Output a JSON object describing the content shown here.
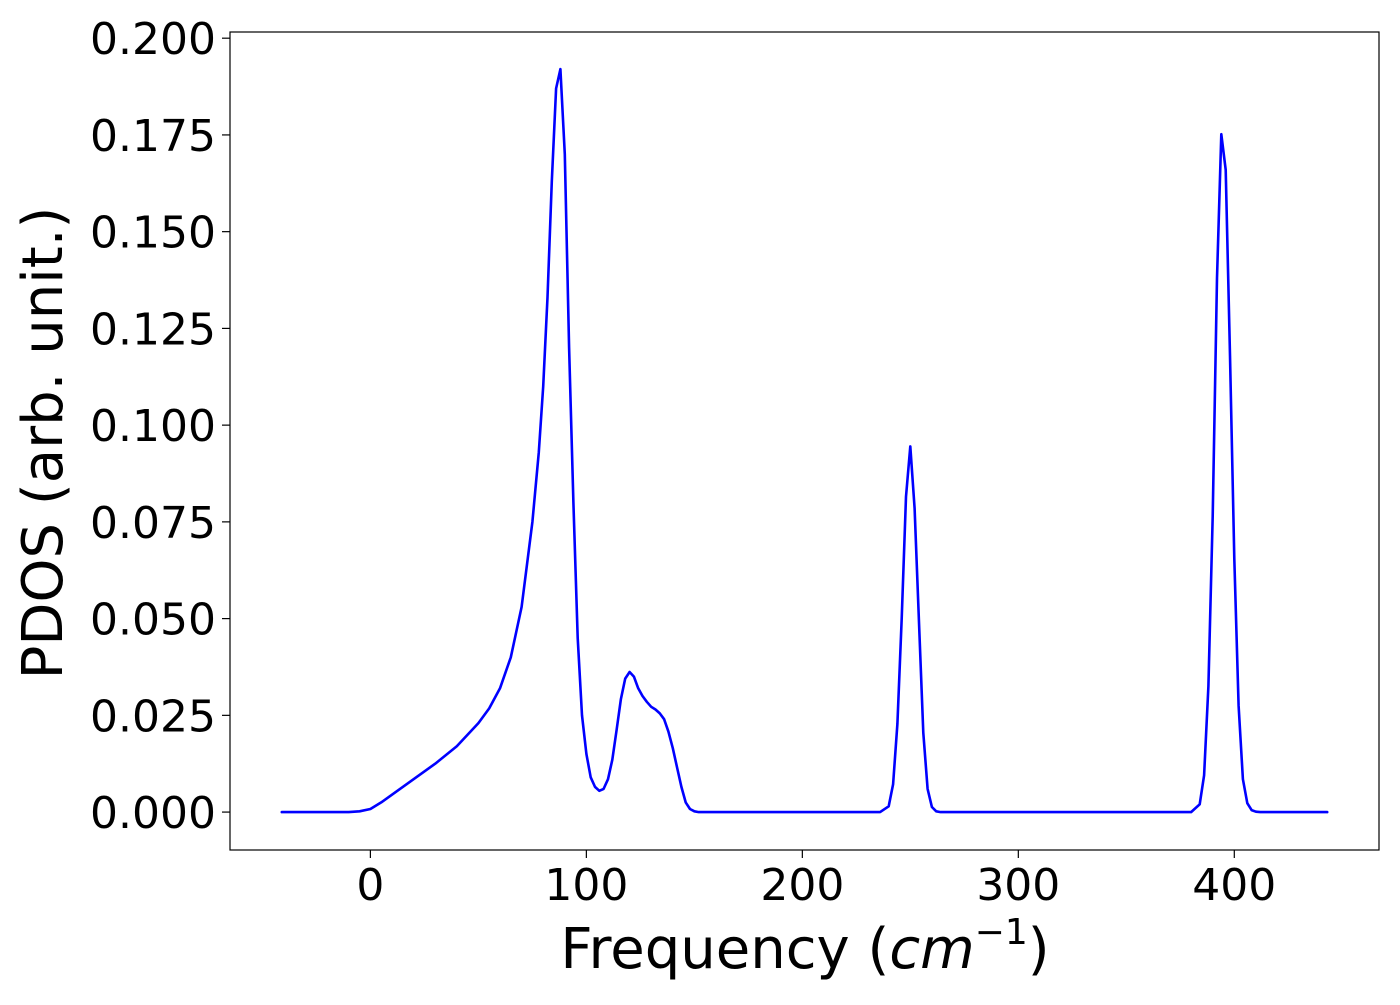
{
  "chart_data": {
    "type": "line",
    "title": "",
    "xlabel": "Frequency (",
    "xlabel_unit": "cm",
    "xlabel_exp": "−1",
    "xlabel_close": ")",
    "ylabel": "PDOS (arb. unit.)",
    "xlim": [
      -65,
      467
    ],
    "ylim": [
      -0.0098,
      0.2016
    ],
    "xticks": [
      0,
      100,
      200,
      300,
      400
    ],
    "yticks": [
      0.0,
      0.025,
      0.05,
      0.075,
      0.1,
      0.125,
      0.15,
      0.175,
      0.2
    ],
    "xtick_labels": [
      "0",
      "100",
      "200",
      "300",
      "400"
    ],
    "ytick_labels": [
      "0.000",
      "0.025",
      "0.050",
      "0.075",
      "0.100",
      "0.125",
      "0.150",
      "0.175",
      "0.200"
    ],
    "grid": false,
    "series": [
      {
        "color": "#0000ff",
        "x": [
          -41,
          -20,
          -10,
          -5,
          0,
          5,
          10,
          20,
          30,
          40,
          50,
          55,
          60,
          65,
          70,
          75,
          78,
          80,
          82,
          84,
          86,
          88,
          90,
          92,
          94,
          96,
          98,
          100,
          102,
          104,
          106,
          108,
          110,
          112,
          114,
          116,
          118,
          120,
          122,
          124,
          126,
          128,
          130,
          132,
          134,
          136,
          138,
          140,
          142,
          144,
          146,
          148,
          150,
          152,
          154,
          156,
          158,
          160,
          162,
          164,
          166,
          170,
          180,
          200,
          220,
          236,
          240,
          242,
          244,
          246,
          248,
          250,
          252,
          254,
          256,
          258,
          260,
          262,
          264,
          266,
          268,
          270,
          280,
          300,
          340,
          380,
          384,
          386,
          388,
          390,
          392,
          394,
          396,
          398,
          400,
          402,
          404,
          406,
          408,
          410,
          412,
          414,
          416,
          420,
          430,
          443
        ],
        "values": [
          0.0,
          0.0,
          0.0,
          0.0002,
          0.0008,
          0.0025,
          0.0045,
          0.0085,
          0.0125,
          0.017,
          0.023,
          0.0268,
          0.032,
          0.04,
          0.053,
          0.075,
          0.093,
          0.11,
          0.133,
          0.163,
          0.187,
          0.192,
          0.17,
          0.12,
          0.08,
          0.045,
          0.025,
          0.015,
          0.009,
          0.0065,
          0.0055,
          0.006,
          0.0085,
          0.0135,
          0.0212,
          0.0292,
          0.0345,
          0.0362,
          0.035,
          0.032,
          0.03,
          0.0285,
          0.0272,
          0.0265,
          0.0255,
          0.024,
          0.0208,
          0.0165,
          0.0115,
          0.0065,
          0.0025,
          0.0008,
          0.0002,
          0.0,
          0.0,
          0.0,
          0.0,
          0.0,
          0.0,
          0.0,
          0.0,
          0.0,
          0.0,
          0.0,
          0.0,
          0.0,
          0.0015,
          0.0072,
          0.0228,
          0.05,
          0.0815,
          0.0945,
          0.0785,
          0.049,
          0.0205,
          0.006,
          0.0013,
          0.0002,
          0.0,
          0.0,
          0.0,
          0.0,
          0.0,
          0.0,
          0.0,
          0.0,
          0.002,
          0.0095,
          0.0325,
          0.0765,
          0.138,
          0.1752,
          0.166,
          0.118,
          0.0655,
          0.0275,
          0.0085,
          0.0023,
          0.0005,
          0.0001,
          0.0,
          0.0,
          0.0,
          0.0,
          0.0,
          0.0
        ]
      }
    ]
  }
}
